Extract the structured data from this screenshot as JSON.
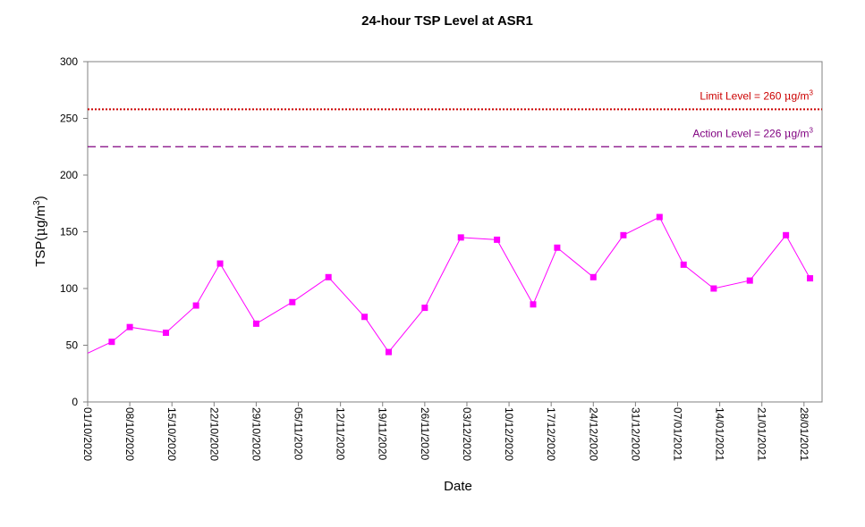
{
  "chart_data": {
    "type": "line",
    "title": "24-hour TSP Level at ASR1",
    "xlabel": "Date",
    "ylabel": "TSP(μg/m3)",
    "ylabel_main": "TSP(",
    "ylabel_mu": "μ",
    "ylabel_unit": "g/m",
    "ylabel_sup": "3",
    "ylabel_close": ")",
    "ylim": [
      0,
      300
    ],
    "yticks": [
      0,
      50,
      100,
      150,
      200,
      250,
      300
    ],
    "xlim": [
      "2020-10-01",
      "2021-01-31"
    ],
    "xticks": [
      "01/10/2020",
      "08/10/2020",
      "15/10/2020",
      "22/10/2020",
      "29/10/2020",
      "05/11/2020",
      "12/11/2020",
      "19/11/2020",
      "26/11/2020",
      "03/12/2020",
      "10/12/2020",
      "17/12/2020",
      "24/12/2020",
      "31/12/2020",
      "07/01/2021",
      "14/01/2021",
      "21/01/2021",
      "28/01/2021"
    ],
    "grid": false,
    "series": [
      {
        "name": "",
        "color": "#ff00ff",
        "x": [
          "2020-10-01",
          "2020-10-05",
          "2020-10-08",
          "2020-10-14",
          "2020-10-19",
          "2020-10-23",
          "2020-10-29",
          "2020-11-04",
          "2020-11-10",
          "2020-11-16",
          "2020-11-20",
          "2020-11-26",
          "2020-12-02",
          "2020-12-08",
          "2020-12-14",
          "2020-12-18",
          "2020-12-24",
          "2020-12-29",
          "2021-01-04",
          "2021-01-08",
          "2021-01-13",
          "2021-01-19",
          "2021-01-25",
          "2021-01-29"
        ],
        "y": [
          43,
          53,
          66,
          61,
          85,
          122,
          69,
          88,
          110,
          75,
          44,
          83,
          145,
          143,
          86,
          136,
          110,
          147,
          163,
          121,
          100,
          107,
          147,
          109
        ],
        "markers": [
          false,
          true,
          true,
          true,
          true,
          true,
          true,
          true,
          true,
          true,
          true,
          true,
          true,
          true,
          true,
          true,
          true,
          true,
          true,
          true,
          true,
          true,
          true,
          true
        ]
      }
    ],
    "reference_lines": [
      {
        "label_text": "Limit Level  = 260 ",
        "mu": "μ",
        "unit": "g/m",
        "sup": "3",
        "value": 260,
        "color": "#cc0000",
        "style": "dotted",
        "y_drawn": 258
      },
      {
        "label_text": "Action Level  = 226 ",
        "mu": "μ",
        "unit": "g/m",
        "sup": "3",
        "value": 226,
        "color": "#800080",
        "style": "dashed",
        "y_drawn": 225
      }
    ]
  }
}
